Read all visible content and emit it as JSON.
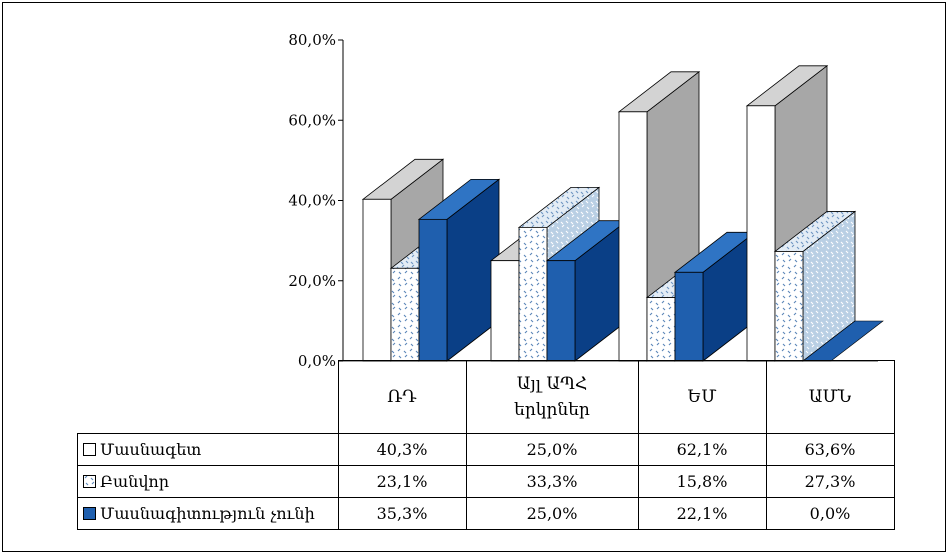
{
  "chart_data": {
    "type": "bar",
    "categories": [
      "ՌԴ",
      "Այլ ԱՊՀ երկրներ",
      "ԵՄ",
      "ԱՄՆ"
    ],
    "series": [
      {
        "name": "Մասնագետ",
        "values": [
          40.3,
          25.0,
          62.1,
          63.6
        ],
        "display": [
          "40,3%",
          "25,0%",
          "62,1%",
          "63,6%"
        ],
        "fill": "white",
        "color": "#ffffff"
      },
      {
        "name": "Բանվոր",
        "values": [
          23.1,
          33.3,
          15.8,
          27.3
        ],
        "display": [
          "23,1%",
          "33,3%",
          "15,8%",
          "27,3%"
        ],
        "fill": "dotted",
        "color": "#cfe0ef"
      },
      {
        "name": "Մասնագիտություն չունի",
        "values": [
          35.3,
          25.0,
          22.1,
          0.0
        ],
        "display": [
          "35,3%",
          "25,0%",
          "22,1%",
          "0,0%"
        ],
        "fill": "solid",
        "color": "#1f5fae"
      }
    ],
    "yticks": [
      "0,0%",
      "20,0%",
      "40,0%",
      "60,0%",
      "80,0%"
    ],
    "ylim": [
      0,
      80
    ],
    "projection": "3d-clustered",
    "legend": "data-table-below"
  }
}
